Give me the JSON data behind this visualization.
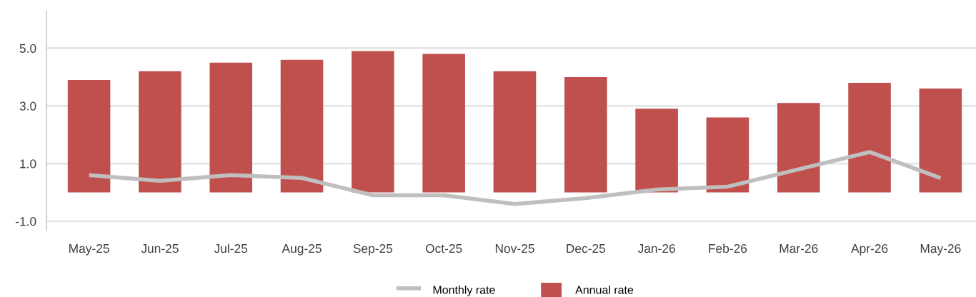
{
  "chart_data": {
    "type": "bar",
    "categories": [
      "May-25",
      "Jun-25",
      "Jul-25",
      "Aug-25",
      "Sep-25",
      "Oct-25",
      "Nov-25",
      "Dec-25",
      "Jan-26",
      "Feb-26",
      "Mar-26",
      "Apr-26",
      "May-26"
    ],
    "series": [
      {
        "name": "Annual rate",
        "color": "#c0504d",
        "values": [
          3.9,
          4.2,
          4.5,
          4.6,
          4.9,
          4.8,
          4.2,
          4.0,
          2.9,
          2.6,
          3.1,
          3.8,
          3.6
        ]
      },
      {
        "name": "Monthly rate",
        "type": "line",
        "color": "#bfbfbf",
        "values": [
          0.6,
          0.4,
          0.6,
          0.5,
          -0.1,
          -0.1,
          -0.4,
          -0.2,
          0.1,
          0.2,
          0.8,
          1.4,
          0.5
        ]
      }
    ],
    "ylim": [
      -1.3,
      6.3
    ],
    "yticks": [
      {
        "value": -1,
        "label": "-1.0"
      },
      {
        "value": 1,
        "label": "1.0"
      },
      {
        "value": 3,
        "label": "3.0"
      },
      {
        "value": 5,
        "label": "5.0"
      }
    ],
    "grid": "y",
    "legend": "bottom",
    "marker": "none",
    "line_style": "solid"
  }
}
